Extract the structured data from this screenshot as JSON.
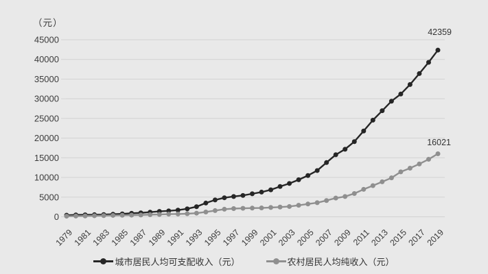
{
  "chart_data": {
    "type": "line",
    "title": "",
    "ylabel_unit": "（元）",
    "years": [
      1979,
      1980,
      1981,
      1982,
      1983,
      1984,
      1985,
      1986,
      1987,
      1988,
      1989,
      1990,
      1991,
      1992,
      1993,
      1994,
      1995,
      1996,
      1997,
      1998,
      1999,
      2000,
      2001,
      2002,
      2003,
      2004,
      2005,
      2006,
      2007,
      2008,
      2009,
      2010,
      2011,
      2012,
      2013,
      2014,
      2015,
      2016,
      2017,
      2018,
      2019
    ],
    "xtick_labels": [
      "1979",
      "1981",
      "1983",
      "1985",
      "1987",
      "1989",
      "1991",
      "1993",
      "1995",
      "1997",
      "1999",
      "2001",
      "2003",
      "2005",
      "2007",
      "2009",
      "2011",
      "2013",
      "2015",
      "2017",
      "2019"
    ],
    "ylim": [
      0,
      45000
    ],
    "ytick_step": 5000,
    "ytick_labels": [
      "0",
      "5000",
      "10000",
      "15000",
      "20000",
      "25000",
      "30000",
      "35000",
      "40000",
      "45000"
    ],
    "grid": "horizontal",
    "legend_position": "bottom",
    "colors": {
      "background": "#e9e9e9",
      "gridline": "#d2d2d2",
      "axis_text": "#3c3c3c"
    },
    "series": [
      {
        "name": "城市居民人均可支配收入（元）",
        "color": "#262626",
        "end_label": "42359",
        "values": [
          405,
          478,
          500,
          535,
          565,
          652,
          739,
          901,
          1002,
          1181,
          1374,
          1510,
          1701,
          2027,
          2577,
          3496,
          4283,
          4839,
          5160,
          5425,
          5854,
          6280,
          6860,
          7703,
          8472,
          9422,
          10493,
          11760,
          13786,
          15781,
          17175,
          19109,
          21810,
          24565,
          26955,
          29381,
          31195,
          33616,
          36396,
          39251,
          42359
        ]
      },
      {
        "name": "农村居民人均纯收入（元）",
        "color": "#8f8f8f",
        "end_label": "16021",
        "values": [
          160,
          191,
          223,
          270,
          310,
          355,
          398,
          424,
          463,
          545,
          602,
          686,
          709,
          784,
          922,
          1221,
          1578,
          1926,
          2090,
          2162,
          2210,
          2253,
          2366,
          2476,
          2622,
          2936,
          3255,
          3587,
          4140,
          4761,
          5153,
          5919,
          6977,
          7917,
          8896,
          9892,
          11422,
          12363,
          13432,
          14617,
          16021
        ]
      }
    ]
  }
}
